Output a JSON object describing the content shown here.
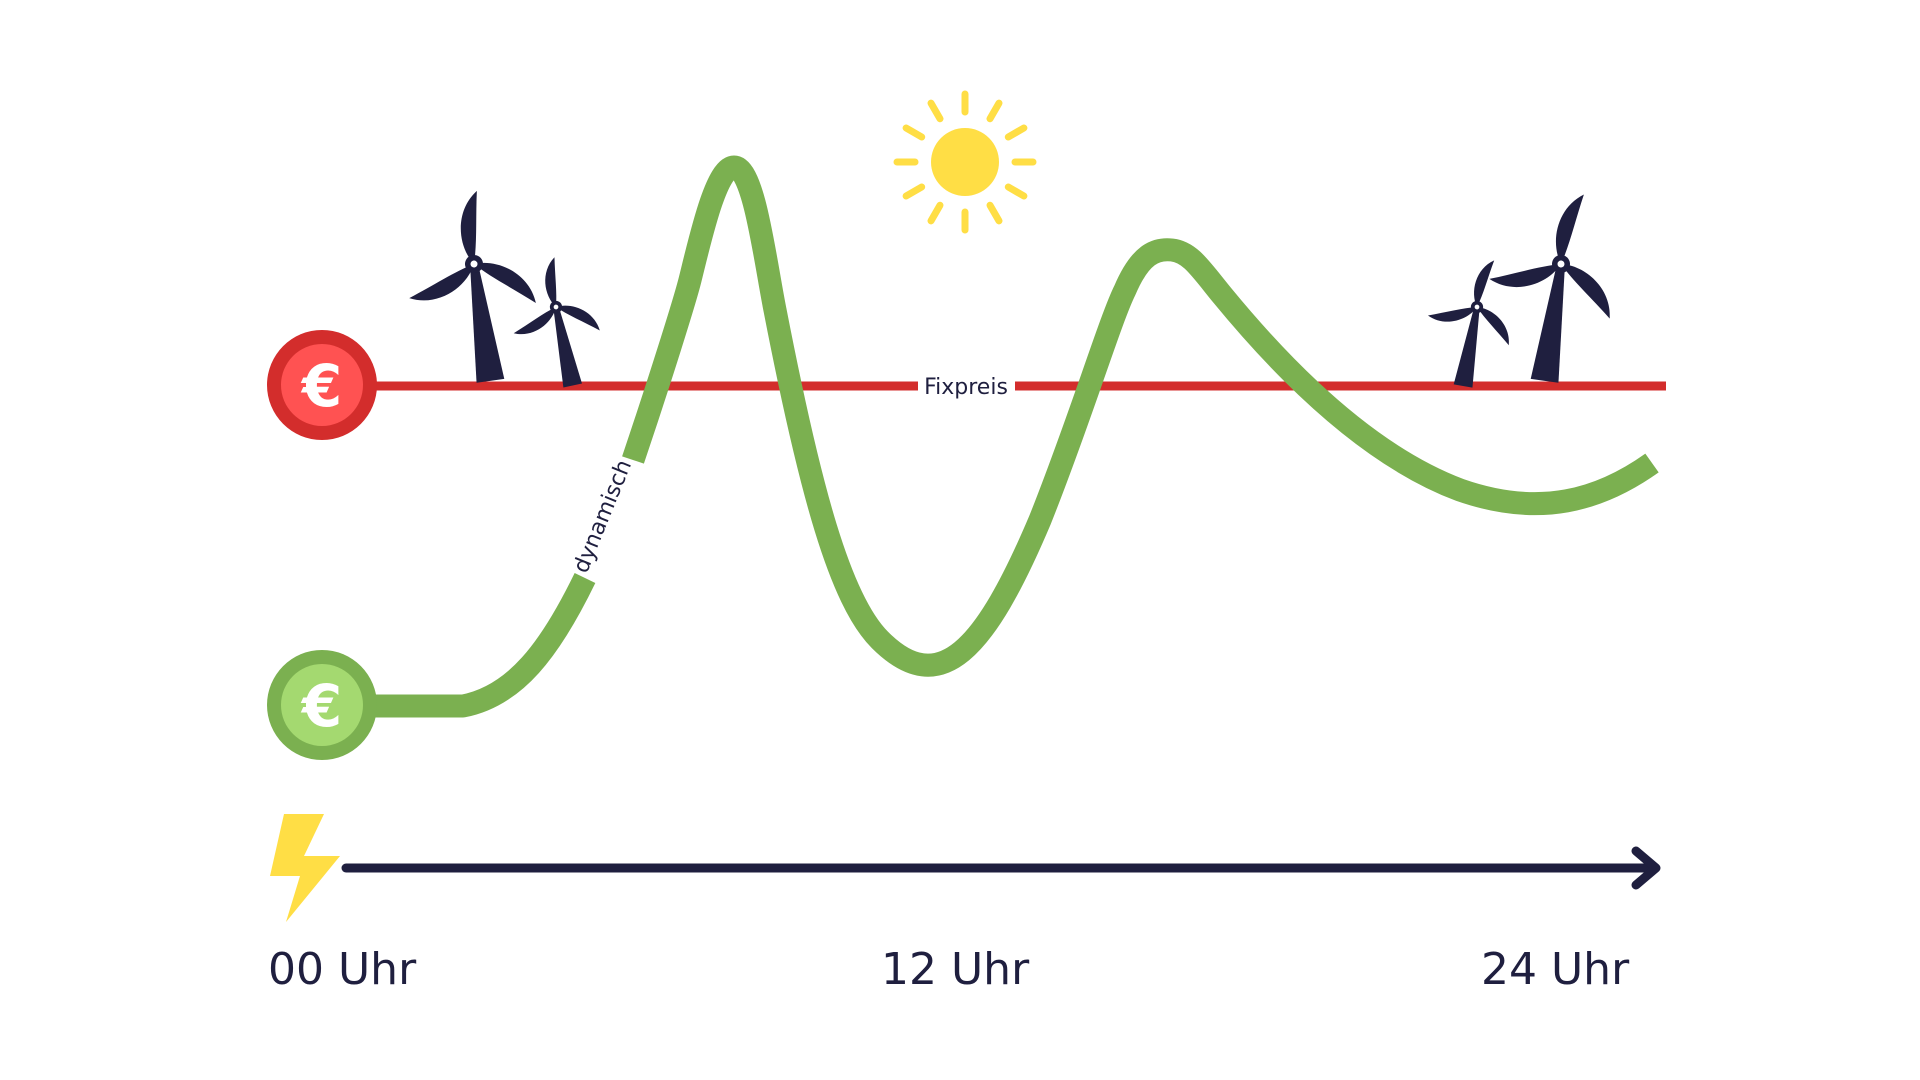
{
  "lines": {
    "fixed_label": "Fixpreis",
    "dynamic_label": "dynamisch"
  },
  "markers": {
    "fixed_symbol": "€",
    "dynamic_symbol": "€"
  },
  "axis": {
    "start_label": "00 Uhr",
    "middle_label": "12 Uhr",
    "end_label": "24 Uhr"
  },
  "icons": {
    "left_wind": "wind-turbine-icon",
    "sun": "sun-icon",
    "right_wind": "wind-turbine-icon",
    "power": "lightning-bolt-icon",
    "axis_arrow": "arrow-right-icon"
  },
  "colors": {
    "fixed_line": "#d32d2c",
    "fixed_marker_outer": "#d32d2c",
    "fixed_marker_inner": "#ff5252",
    "dynamic_line": "#7bb050",
    "dynamic_marker_inner": "#a4d970",
    "axis": "#1f1f3f",
    "sun": "#ffde45",
    "turbine": "#1f1f3f",
    "bolt": "#ffde45"
  }
}
